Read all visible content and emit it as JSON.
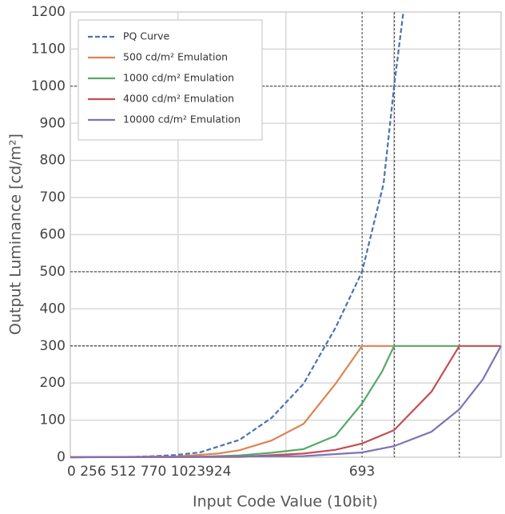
{
  "chart_data": {
    "type": "line",
    "x_label": "Input Code Value (10bit)",
    "y_label": "Output Luminance [cd/m²]",
    "xlim": [
      0,
      1023
    ],
    "ylim": [
      0,
      1200
    ],
    "yticks": [
      0,
      100,
      200,
      300,
      400,
      500,
      600,
      700,
      800,
      900,
      1000,
      1100,
      1200
    ],
    "xticks": [
      693
    ],
    "x_tick_text": "0 256 512 770 1023924",
    "xgrid": [
      256,
      512,
      768
    ],
    "grid": true,
    "vlines": [
      693,
      770,
      924
    ],
    "hlines": [
      300,
      500,
      1000
    ],
    "legend": "upper left",
    "series": [
      {
        "name": "PQ Curve",
        "color": "#4c72b0",
        "dashed": true,
        "x": [
          0,
          150,
          200,
          250,
          307,
          402,
          478,
          554,
          630,
          693,
          744,
          769,
          791
        ],
        "values": [
          0,
          1,
          3,
          6,
          13,
          47,
          106,
          198,
          349,
          500,
          737,
          1000,
          1200
        ]
      },
      {
        "name": "500 cd/m² Emulation",
        "color": "#dd8452",
        "x": [
          0,
          250,
          350,
          402,
          478,
          554,
          630,
          693,
          770
        ],
        "values": [
          0,
          2,
          10,
          19,
          45,
          90,
          198,
          300,
          300
        ]
      },
      {
        "name": "1000 cd/m² Emulation",
        "color": "#55a868",
        "x": [
          0,
          300,
          402,
          478,
          554,
          630,
          693,
          740,
          769,
          924
        ],
        "values": [
          0,
          1,
          5,
          12,
          22,
          58,
          145,
          230,
          300,
          300
        ]
      },
      {
        "name": "4000 cd/m² Emulation",
        "color": "#c44e52",
        "x": [
          0,
          402,
          554,
          630,
          693,
          769,
          858,
          924,
          1023
        ],
        "values": [
          0,
          1,
          10,
          20,
          37,
          73,
          177,
          300,
          300
        ]
      },
      {
        "name": "10000 cd/m² Emulation",
        "color": "#8172b3",
        "x": [
          0,
          554,
          693,
          769,
          858,
          924,
          980,
          1023
        ],
        "values": [
          0,
          3,
          13,
          30,
          69,
          129,
          210,
          300
        ]
      }
    ]
  }
}
